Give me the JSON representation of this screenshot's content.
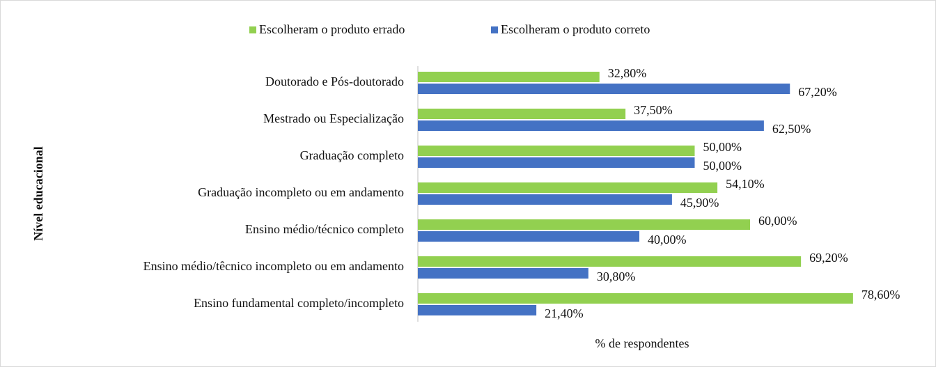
{
  "chart_data": {
    "type": "hbar",
    "xlabel": "% de respondentes",
    "ylabel": "Nível educacional",
    "categories": [
      "Doutorado e Pós-doutorado",
      "Mestrado ou Especialização",
      "Graduação completo",
      "Graduação incompleto ou em andamento",
      "Ensino médio/técnico completo",
      "Ensino médio/têcnico incompleto ou em andamento",
      "Ensino fundamental completo/incompleto"
    ],
    "series": [
      {
        "name": "Escolheram o produto errado",
        "color": "#92d050",
        "values": [
          32.8,
          37.5,
          50.0,
          54.1,
          60.0,
          69.2,
          78.6
        ],
        "value_labels": [
          "32,80%",
          "37,50%",
          "50,00%",
          "54,10%",
          "60,00%",
          "69,20%",
          "78,60%"
        ]
      },
      {
        "name": "Escolheram o produto correto",
        "color": "#4472c4",
        "values": [
          67.2,
          62.5,
          50.0,
          45.9,
          40.0,
          30.8,
          21.4
        ],
        "value_labels": [
          "67,20%",
          "62,50%",
          "50,00%",
          "45,90%",
          "40,00%",
          "30,80%",
          "21,40%"
        ]
      }
    ],
    "xlim": [
      0,
      80
    ],
    "legend": "top"
  }
}
